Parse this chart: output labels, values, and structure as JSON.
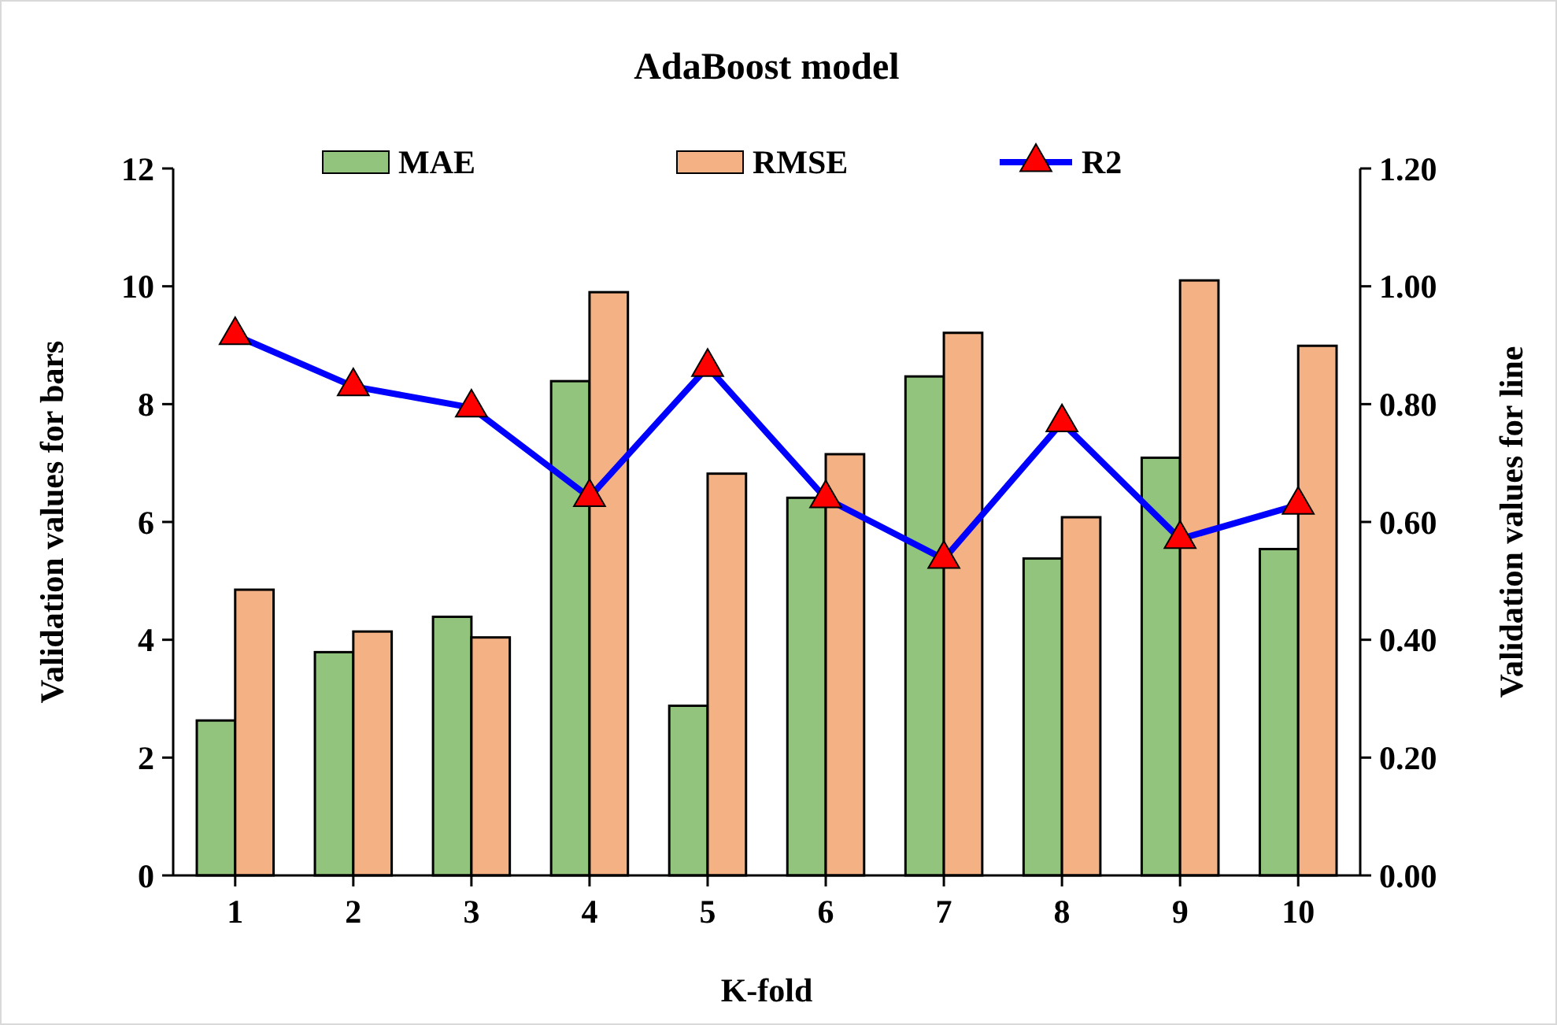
{
  "chart_data": {
    "type": "bar",
    "title": "AdaBoost model",
    "xlabel": "K-fold",
    "ylabel": "Validation values for bars",
    "y2label": "Validation values for line",
    "categories": [
      "1",
      "2",
      "3",
      "4",
      "5",
      "6",
      "7",
      "8",
      "9",
      "10"
    ],
    "series": [
      {
        "name": "MAE",
        "color": "#93c47d",
        "values": [
          2.63,
          3.79,
          4.39,
          8.39,
          2.88,
          6.41,
          8.47,
          5.38,
          7.09,
          5.54
        ]
      },
      {
        "name": "RMSE",
        "color": "#f4b183",
        "values": [
          4.85,
          4.14,
          4.04,
          9.9,
          6.82,
          7.15,
          9.21,
          6.08,
          10.1,
          8.99
        ]
      },
      {
        "name": "R2",
        "type": "line",
        "axis": "y2",
        "color": "#0000ff",
        "marker": "triangle",
        "values": [
          0.917,
          0.83,
          0.794,
          0.642,
          0.863,
          0.64,
          0.537,
          0.769,
          0.571,
          0.629
        ]
      }
    ],
    "ylim": [
      0,
      12
    ],
    "yticks": [
      0,
      2,
      4,
      6,
      8,
      10,
      12
    ],
    "y2lim": [
      0,
      1.2
    ],
    "y2ticks": [
      {
        "value": 0,
        "label": "0.00"
      },
      {
        "value": 0.2,
        "label": "0.20"
      },
      {
        "value": 0.4,
        "label": "0.40"
      },
      {
        "value": 0.6,
        "label": "0.60"
      },
      {
        "value": 0.8,
        "label": "0.80"
      },
      {
        "value": 1,
        "label": "1.00"
      },
      {
        "value": 1.2,
        "label": "1.20"
      }
    ],
    "legend": "top",
    "grid": false
  }
}
